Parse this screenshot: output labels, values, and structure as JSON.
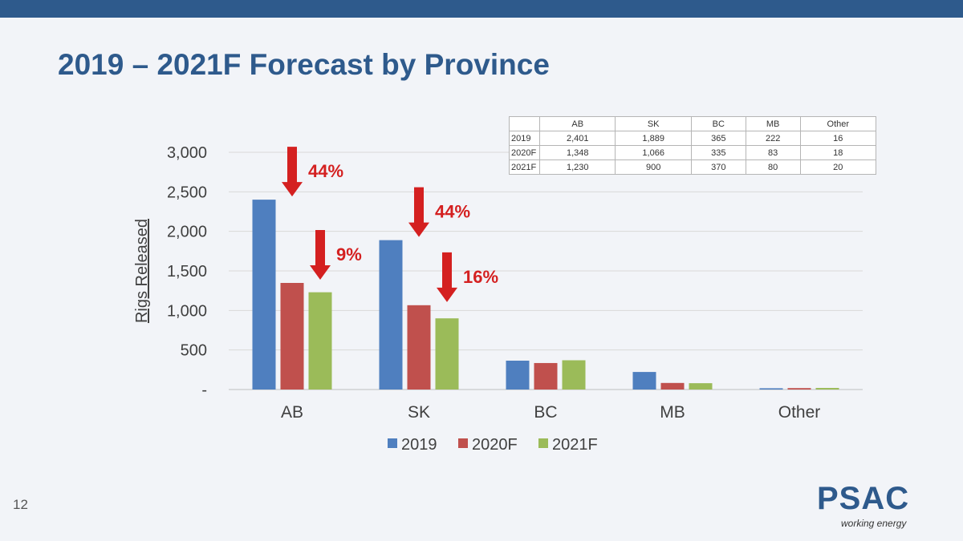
{
  "slide": {
    "title": "2019 – 2021F Forecast by Province",
    "page_number": "12",
    "logo_text": "PSAC",
    "logo_tagline": "working energy"
  },
  "colors": {
    "header_bar": "#2e5a8c",
    "title": "#2e5a8c",
    "series_2019": "#4f7fbf",
    "series_2020F": "#c0504d",
    "series_2021F": "#9bbb59",
    "annotation": "#d42020"
  },
  "chart_data": {
    "type": "bar",
    "categories": [
      "AB",
      "SK",
      "BC",
      "MB",
      "Other"
    ],
    "series": [
      {
        "name": "2019",
        "values": [
          2401,
          1889,
          365,
          222,
          16
        ]
      },
      {
        "name": "2020F",
        "values": [
          1348,
          1066,
          335,
          83,
          18
        ]
      },
      {
        "name": "2021F",
        "values": [
          1230,
          900,
          370,
          80,
          20
        ]
      }
    ],
    "ylabel": "Rigs Released",
    "xlabel": "",
    "ylim": [
      0,
      3000
    ],
    "yticks": [
      {
        "value": 0,
        "label": "-"
      },
      {
        "value": 500,
        "label": "500"
      },
      {
        "value": 1000,
        "label": "1,000"
      },
      {
        "value": 1500,
        "label": "1,500"
      },
      {
        "value": 2000,
        "label": "2,000"
      },
      {
        "value": 2500,
        "label": "2,500"
      },
      {
        "value": 3000,
        "label": "3,000"
      }
    ],
    "grid": true,
    "legend_position": "bottom",
    "annotations": [
      {
        "label": "44%",
        "category": "AB",
        "from_series": "2019",
        "to_series": "2020F"
      },
      {
        "label": "9%",
        "category": "AB",
        "from_series": "2020F",
        "to_series": "2021F"
      },
      {
        "label": "44%",
        "category": "SK",
        "from_series": "2019",
        "to_series": "2020F"
      },
      {
        "label": "16%",
        "category": "SK",
        "from_series": "2020F",
        "to_series": "2021F"
      }
    ]
  },
  "table": {
    "headers": [
      "",
      "AB",
      "SK",
      "BC",
      "MB",
      "Other"
    ],
    "rows": [
      [
        "2019",
        "2,401",
        "1,889",
        "365",
        "222",
        "16"
      ],
      [
        "2020F",
        "1,348",
        "1,066",
        "335",
        "83",
        "18"
      ],
      [
        "2021F",
        "1,230",
        "900",
        "370",
        "80",
        "20"
      ]
    ]
  }
}
